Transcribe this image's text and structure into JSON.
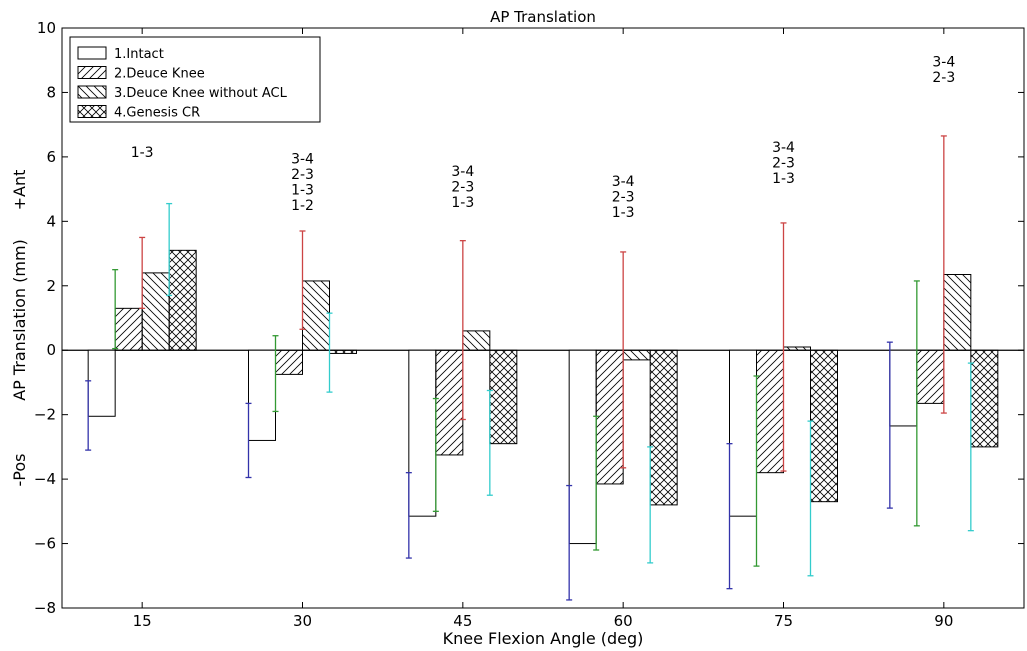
{
  "chart_data": {
    "type": "bar",
    "title": "AP Translation",
    "xlabel": "Knee Flexion Angle (deg)",
    "ylabel": "AP Translation (mm)",
    "ylabel_pos": "+Ant",
    "ylabel_neg": "-Pos",
    "categories": [
      "15",
      "30",
      "45",
      "60",
      "75",
      "90"
    ],
    "ylim": [
      -8,
      10
    ],
    "yticks": [
      -8,
      -6,
      -4,
      -2,
      0,
      2,
      4,
      6,
      8,
      10
    ],
    "legend_position": "top-left",
    "grid": false,
    "series": [
      {
        "name": "1.Intact",
        "hatch": "none",
        "error_color": "#3333aa",
        "values": [
          -2.05,
          -2.8,
          -5.15,
          -6.0,
          -5.15,
          -2.35
        ],
        "err_low": [
          -3.1,
          -3.95,
          -6.45,
          -7.75,
          -7.4,
          -4.9
        ],
        "err_high": [
          -0.95,
          -1.65,
          -3.8,
          -4.2,
          -2.9,
          0.25
        ]
      },
      {
        "name": "2.Deuce Knee",
        "hatch": "diagonal-up",
        "error_color": "#339933",
        "values": [
          1.3,
          -0.75,
          -3.25,
          -4.15,
          -3.8,
          -1.65
        ],
        "err_low": [
          0.05,
          -1.9,
          -5.0,
          -6.2,
          -6.7,
          -5.45
        ],
        "err_high": [
          2.5,
          0.45,
          -1.5,
          -2.05,
          -0.8,
          2.15
        ]
      },
      {
        "name": "3.Deuce Knee without ACL",
        "hatch": "diagonal-down",
        "error_color": "#cc4444",
        "values": [
          2.4,
          2.15,
          0.6,
          -0.3,
          0.1,
          2.35
        ],
        "err_low": [
          1.3,
          0.65,
          -2.15,
          -3.65,
          -3.75,
          -1.95
        ],
        "err_high": [
          3.5,
          3.7,
          3.4,
          3.05,
          3.95,
          6.65
        ]
      },
      {
        "name": "4.Genesis CR",
        "hatch": "cross",
        "error_color": "#33cccc",
        "values": [
          3.1,
          -0.1,
          -2.9,
          -4.8,
          -4.7,
          -3.0
        ],
        "err_low": [
          1.7,
          -1.3,
          -4.5,
          -6.6,
          -7.0,
          -5.6
        ],
        "err_high": [
          4.55,
          1.15,
          -1.25,
          -3.0,
          -2.2,
          -0.4
        ]
      }
    ],
    "annotations": [
      {
        "category": "15",
        "lines": [
          "1-3"
        ],
        "y_top": 6.0
      },
      {
        "category": "30",
        "lines": [
          "3-4",
          "2-3",
          "1-3",
          "1-2"
        ],
        "y_top": 5.8
      },
      {
        "category": "45",
        "lines": [
          "3-4",
          "2-3",
          "1-3"
        ],
        "y_top": 5.4
      },
      {
        "category": "60",
        "lines": [
          "3-4",
          "2-3",
          "1-3"
        ],
        "y_top": 5.1
      },
      {
        "category": "75",
        "lines": [
          "3-4",
          "2-3",
          "1-3"
        ],
        "y_top": 6.15
      },
      {
        "category": "90",
        "lines": [
          "3-4",
          "2-3"
        ],
        "y_top": 8.8
      }
    ]
  }
}
